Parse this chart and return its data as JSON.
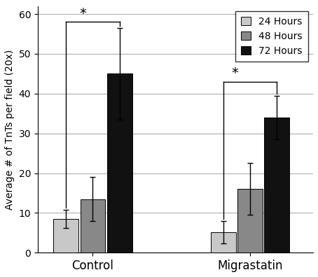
{
  "groups": [
    "Control",
    "Migrastatin"
  ],
  "hours": [
    "24 Hours",
    "48 Hours",
    "72 Hours"
  ],
  "bar_colors": [
    "#c8c8c8",
    "#888888",
    "#111111"
  ],
  "values": {
    "Control": [
      8.5,
      13.5,
      45.0
    ],
    "Migrastatin": [
      5.2,
      16.0,
      34.0
    ]
  },
  "errors": {
    "Control": [
      2.3,
      5.5,
      11.5
    ],
    "Migrastatin": [
      2.8,
      6.5,
      5.5
    ]
  },
  "ylabel": "Average # of TnTs per field (20x)",
  "ylim": [
    0,
    62
  ],
  "yticks": [
    0,
    10,
    20,
    30,
    40,
    50,
    60
  ],
  "group_centers": [
    1.3,
    3.3
  ],
  "bar_width": 0.32,
  "bar_gap": 0.02,
  "legend_labels": [
    "24 Hours",
    "48 Hours",
    "72 Hours"
  ],
  "background_color": "#ffffff",
  "grid_color": "#b0b0b0"
}
